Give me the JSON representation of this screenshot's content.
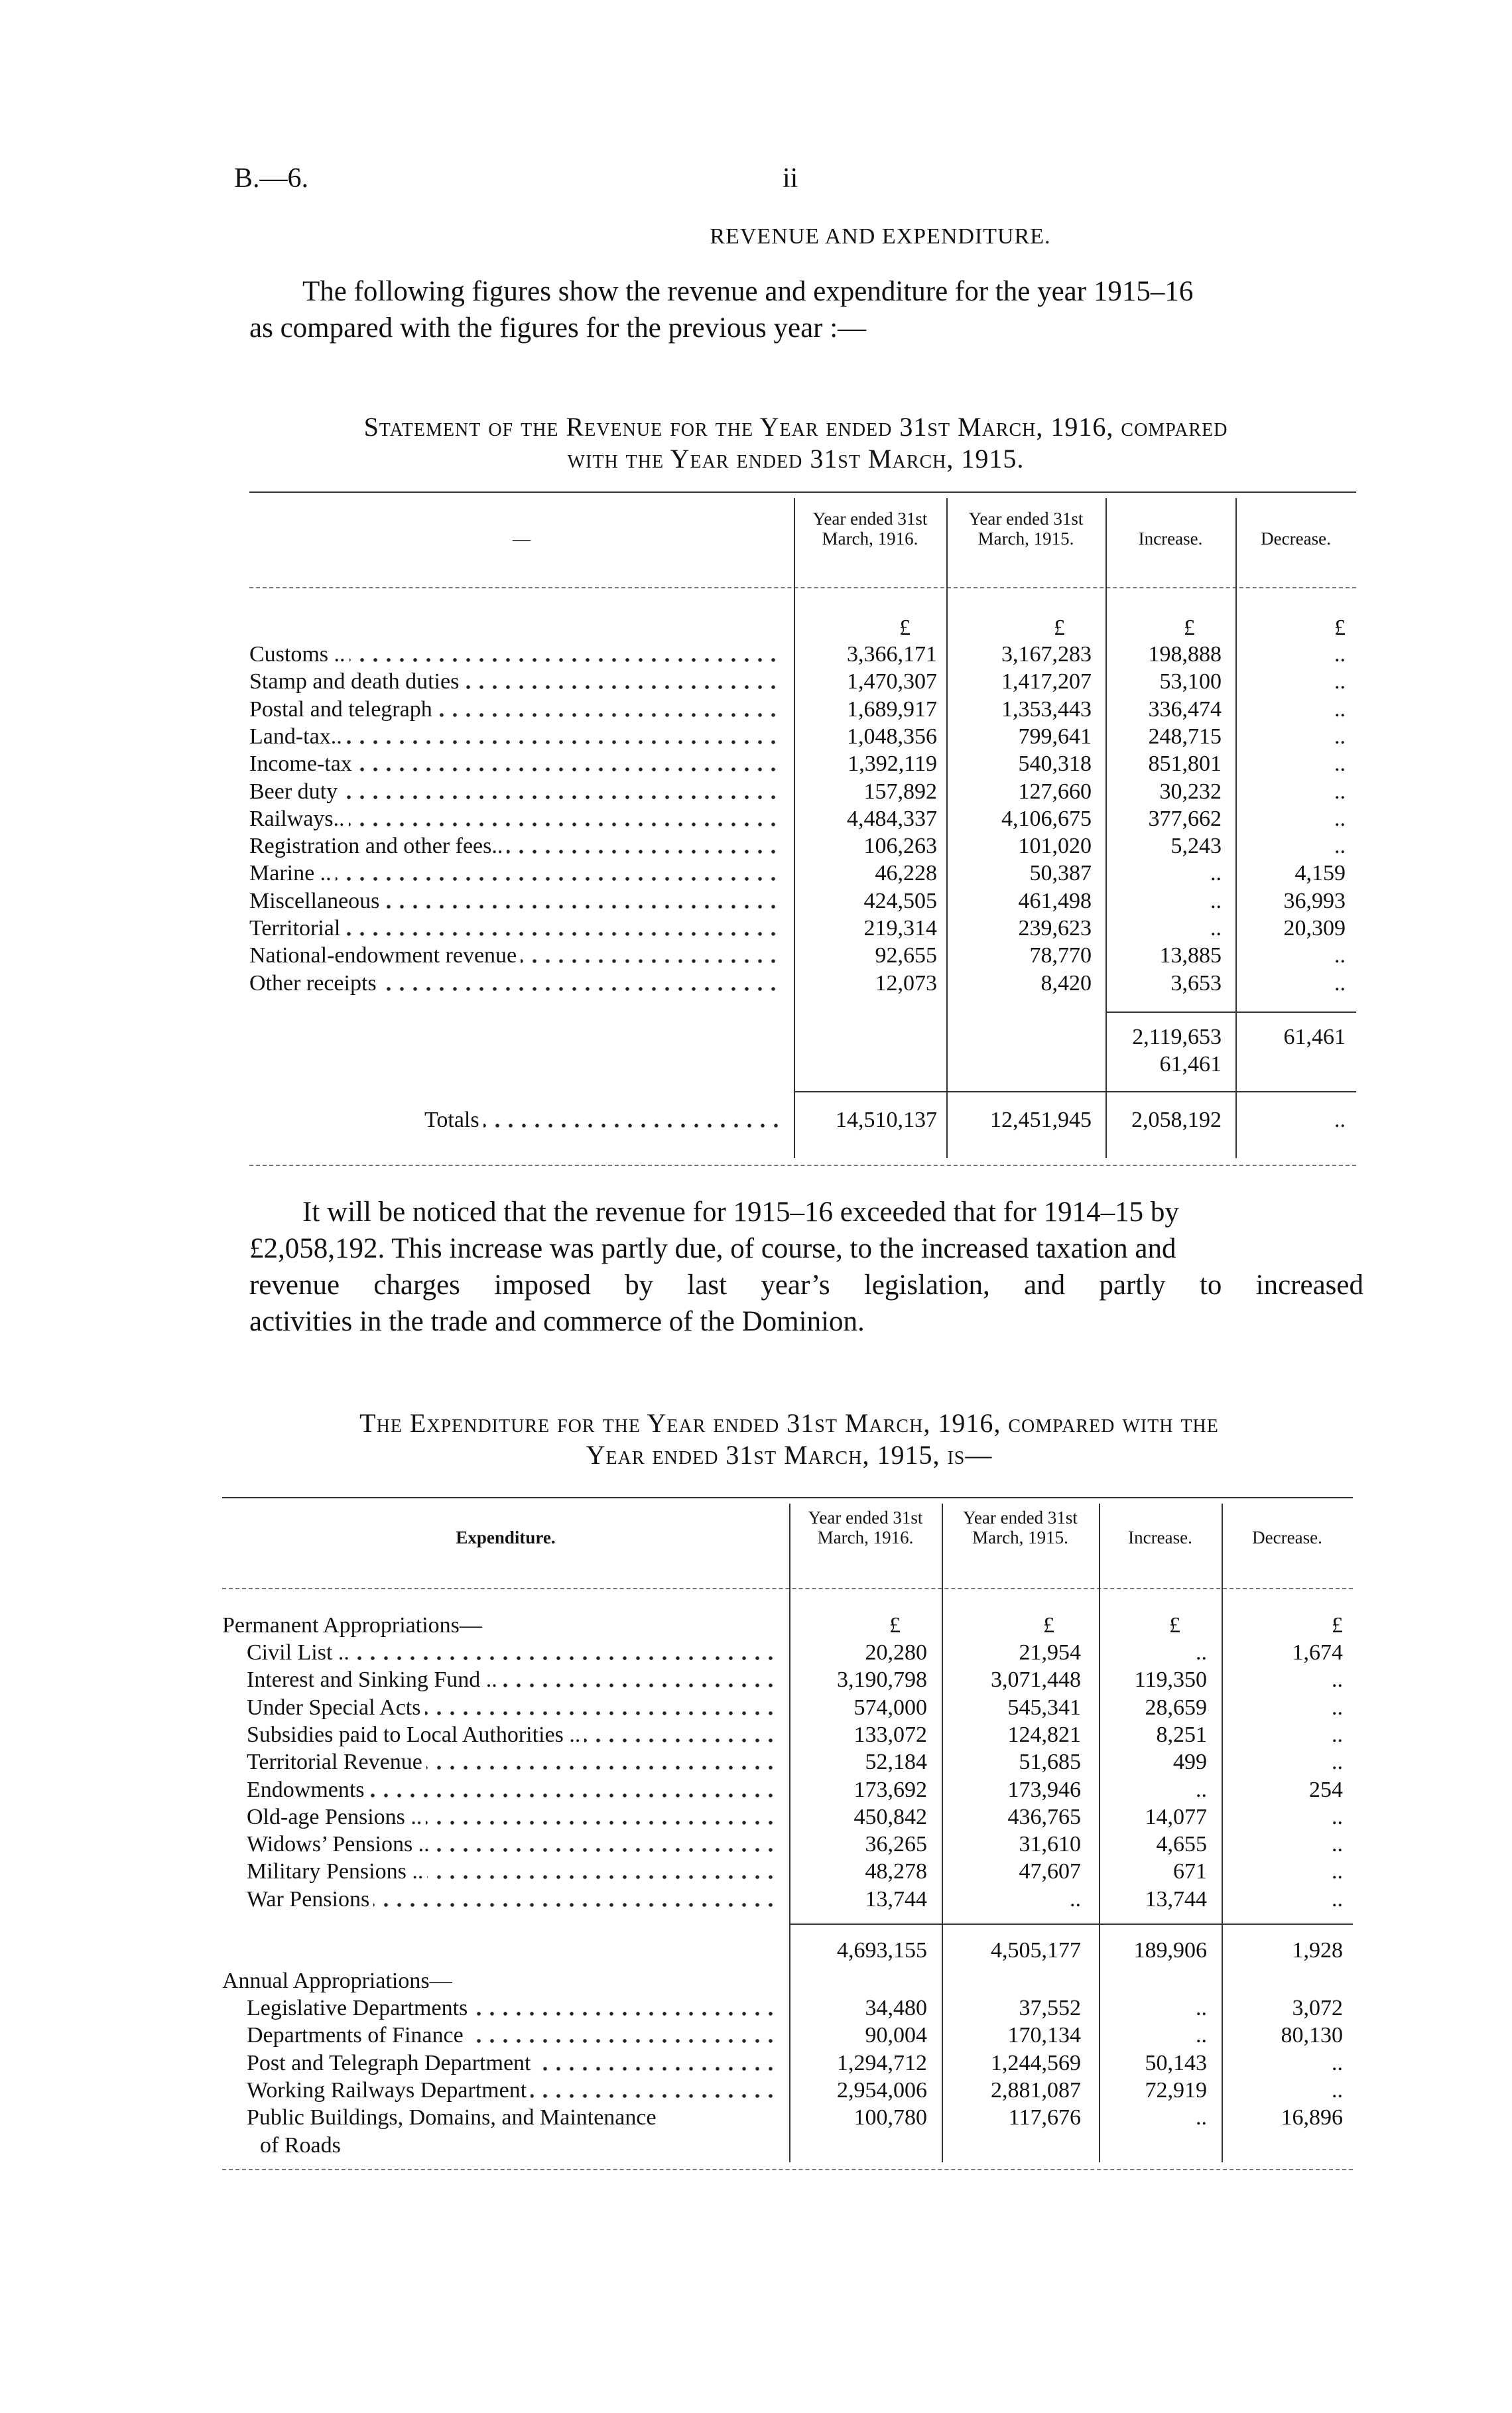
{
  "header": {
    "ref": "B.—6.",
    "page": "ii"
  },
  "title": "REVENUE AND EXPENDITURE.",
  "intro": {
    "line1": "The following figures show the revenue and expenditure for the year 1915–16",
    "line2": "as compared with the figures for the previous year :—"
  },
  "revenue": {
    "heading_line1": "Statement of the Revenue for the Year ended 31st March, 1916, compared",
    "heading_line2": "with the Year ended 31st March, 1915.",
    "columns": [
      "—",
      "Year ended 31st March, 1916.",
      "Year ended 31st March, 1915.",
      "Increase.",
      "Decrease."
    ],
    "currency": "£",
    "rows": [
      {
        "label": "Customs ..",
        "y1916": "3,366,171",
        "y1915": "3,167,283",
        "increase": "198,888",
        "decrease": ".."
      },
      {
        "label": "Stamp and death duties",
        "y1916": "1,470,307",
        "y1915": "1,417,207",
        "increase": "53,100",
        "decrease": ".."
      },
      {
        "label": "Postal and telegraph",
        "y1916": "1,689,917",
        "y1915": "1,353,443",
        "increase": "336,474",
        "decrease": ".."
      },
      {
        "label": "Land-tax..",
        "y1916": "1,048,356",
        "y1915": "799,641",
        "increase": "248,715",
        "decrease": ".."
      },
      {
        "label": "Income-tax",
        "y1916": "1,392,119",
        "y1915": "540,318",
        "increase": "851,801",
        "decrease": ".."
      },
      {
        "label": "Beer duty",
        "y1916": "157,892",
        "y1915": "127,660",
        "increase": "30,232",
        "decrease": ".."
      },
      {
        "label": "Railways..",
        "y1916": "4,484,337",
        "y1915": "4,106,675",
        "increase": "377,662",
        "decrease": ".."
      },
      {
        "label": "Registration and other fees..",
        "y1916": "106,263",
        "y1915": "101,020",
        "increase": "5,243",
        "decrease": ".."
      },
      {
        "label": "Marine ..",
        "y1916": "46,228",
        "y1915": "50,387",
        "increase": "..",
        "decrease": "4,159"
      },
      {
        "label": "Miscellaneous",
        "y1916": "424,505",
        "y1915": "461,498",
        "increase": "..",
        "decrease": "36,993"
      },
      {
        "label": "Territorial",
        "y1916": "219,314",
        "y1915": "239,623",
        "increase": "..",
        "decrease": "20,309"
      },
      {
        "label": "National-endowment revenue",
        "y1916": "92,655",
        "y1915": "78,770",
        "increase": "13,885",
        "decrease": ".."
      },
      {
        "label": "Other receipts",
        "y1916": "12,073",
        "y1915": "8,420",
        "increase": "3,653",
        "decrease": ".."
      }
    ],
    "subtotal": {
      "increase": "2,119,653",
      "increase_less": "61,461",
      "decrease": "61,461"
    },
    "totals": {
      "label": "Totals",
      "y1916": "14,510,137",
      "y1915": "12,451,945",
      "increase": "2,058,192",
      "decrease": ".."
    }
  },
  "commentary": {
    "line1": "It will be noticed that the revenue for 1915–16 exceeded that for 1914–15 by",
    "line2": "£2,058,192. This increase was partly due, of course, to the increased taxation and",
    "line3": "revenue charges imposed by last year’s legislation, and partly to increased",
    "line4": "activities in the trade and commerce of the Dominion."
  },
  "expenditure": {
    "heading_line1": "The Expenditure for the Year ended 31st March, 1916, compared with the",
    "heading_line2": "Year ended 31st March, 1915, is—",
    "columns": [
      "Expenditure.",
      "Year ended 31st March, 1916.",
      "Year ended 31st March, 1915.",
      "Increase.",
      "Decrease."
    ],
    "currency": "£",
    "permanent": {
      "heading": "Permanent Appropriations—",
      "rows": [
        {
          "label": "Civil List ..",
          "y1916": "20,280",
          "y1915": "21,954",
          "increase": "..",
          "decrease": "1,674"
        },
        {
          "label": "Interest and Sinking Fund ..",
          "y1916": "3,190,798",
          "y1915": "3,071,448",
          "increase": "119,350",
          "decrease": ".."
        },
        {
          "label": "Under Special Acts",
          "y1916": "574,000",
          "y1915": "545,341",
          "increase": "28,659",
          "decrease": ".."
        },
        {
          "label": "Subsidies paid to Local Authorities ..",
          "y1916": "133,072",
          "y1915": "124,821",
          "increase": "8,251",
          "decrease": ".."
        },
        {
          "label": "Territorial Revenue",
          "y1916": "52,184",
          "y1915": "51,685",
          "increase": "499",
          "decrease": ".."
        },
        {
          "label": "Endowments",
          "y1916": "173,692",
          "y1915": "173,946",
          "increase": "..",
          "decrease": "254"
        },
        {
          "label": "Old-age Pensions ..",
          "y1916": "450,842",
          "y1915": "436,765",
          "increase": "14,077",
          "decrease": ".."
        },
        {
          "label": "Widows’ Pensions ..",
          "y1916": "36,265",
          "y1915": "31,610",
          "increase": "4,655",
          "decrease": ".."
        },
        {
          "label": "Military Pensions ..",
          "y1916": "48,278",
          "y1915": "47,607",
          "increase": "671",
          "decrease": ".."
        },
        {
          "label": "War Pensions",
          "y1916": "13,744",
          "y1915": "..",
          "increase": "13,744",
          "decrease": ".."
        }
      ],
      "subtotal": {
        "y1916": "4,693,155",
        "y1915": "4,505,177",
        "increase": "189,906",
        "decrease": "1,928"
      }
    },
    "annual": {
      "heading": "Annual Appropriations—",
      "rows": [
        {
          "label": "Legislative Departments",
          "y1916": "34,480",
          "y1915": "37,552",
          "increase": "..",
          "decrease": "3,072"
        },
        {
          "label": "Departments of Finance",
          "y1916": "90,004",
          "y1915": "170,134",
          "increase": "..",
          "decrease": "80,130"
        },
        {
          "label": "Post and Telegraph Department",
          "y1916": "1,294,712",
          "y1915": "1,244,569",
          "increase": "50,143",
          "decrease": ".."
        },
        {
          "label": "Working Railways Department",
          "y1916": "2,954,006",
          "y1915": "2,881,087",
          "increase": "72,919",
          "decrease": ".."
        },
        {
          "label": "Public Buildings, Domains, and Maintenance",
          "label_cont": "of Roads",
          "y1916": "100,780",
          "y1915": "117,676",
          "increase": "..",
          "decrease": "16,896"
        }
      ]
    }
  }
}
